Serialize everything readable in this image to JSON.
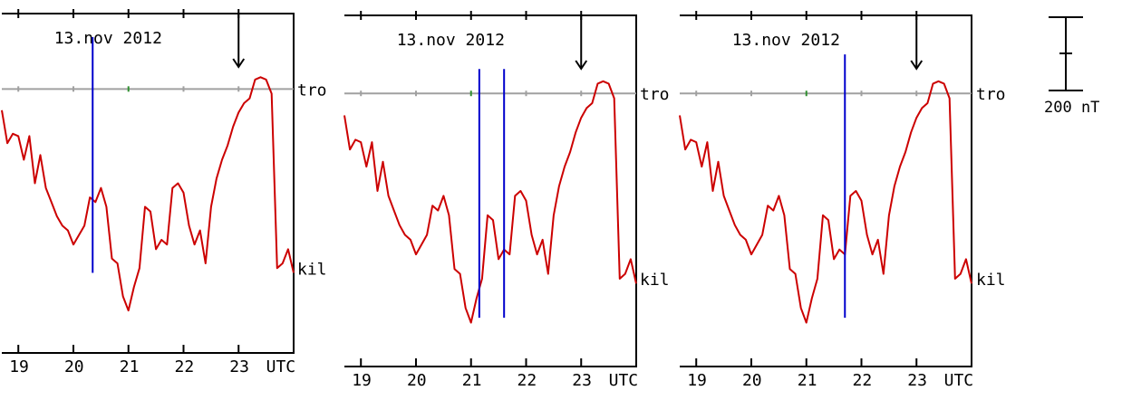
{
  "chart_data": {
    "type": "line",
    "colors": {
      "curve": "#cc0000",
      "marker": "#0000cc",
      "baseline": "#a0a0a0",
      "baseline_tick": "#2f8f2f",
      "frame": "#000000"
    },
    "panels": [
      {
        "date_label": "13.nov 2012",
        "station_top": "tro",
        "station_bottom": "kil",
        "x_ticks": [
          "19",
          "20",
          "21",
          "22",
          "23"
        ],
        "x_unit": "UTC",
        "xlim": [
          18.7,
          24.0
        ],
        "ylim": [
          -560,
          160
        ],
        "baseline_y": 0,
        "green_tick_x": 21.0,
        "date_arrow_x": 23.0,
        "markers": [
          {
            "x": 20.35,
            "y0": -390,
            "y1": 110
          }
        ],
        "x": [
          18.7,
          18.8,
          18.9,
          19.0,
          19.1,
          19.2,
          19.3,
          19.4,
          19.5,
          19.6,
          19.7,
          19.8,
          19.9,
          20.0,
          20.1,
          20.2,
          20.3,
          20.4,
          20.5,
          20.6,
          20.7,
          20.8,
          20.9,
          21.0,
          21.1,
          21.2,
          21.3,
          21.4,
          21.5,
          21.6,
          21.7,
          21.8,
          21.9,
          22.0,
          22.1,
          22.2,
          22.3,
          22.4,
          22.5,
          22.6,
          22.7,
          22.8,
          22.9,
          23.0,
          23.1,
          23.2,
          23.3,
          23.4,
          23.5,
          23.6,
          23.7,
          23.8,
          23.9,
          24.0
        ],
        "y": [
          -45,
          -115,
          -95,
          -100,
          -150,
          -100,
          -200,
          -140,
          -210,
          -240,
          -270,
          -290,
          -300,
          -330,
          -310,
          -290,
          -230,
          -240,
          -210,
          -250,
          -360,
          -370,
          -440,
          -470,
          -420,
          -380,
          -250,
          -260,
          -340,
          -320,
          -330,
          -210,
          -200,
          -220,
          -290,
          -330,
          -300,
          -370,
          -250,
          -190,
          -150,
          -120,
          -80,
          -50,
          -30,
          -20,
          20,
          25,
          20,
          -10,
          -380,
          -370,
          -340,
          -390
        ]
      },
      {
        "date_label": "13.nov 2012",
        "station_top": "tro",
        "station_bottom": "kil",
        "x_ticks": [
          "19",
          "20",
          "21",
          "22",
          "23"
        ],
        "x_unit": "UTC",
        "xlim": [
          18.7,
          24.0
        ],
        "ylim": [
          -560,
          160
        ],
        "baseline_y": 0,
        "green_tick_x": 21.0,
        "date_arrow_x": 23.0,
        "markers": [
          {
            "x": 21.15,
            "y0": -460,
            "y1": 50
          },
          {
            "x": 21.6,
            "y0": -460,
            "y1": 50
          }
        ],
        "x": [
          18.7,
          18.8,
          18.9,
          19.0,
          19.1,
          19.2,
          19.3,
          19.4,
          19.5,
          19.6,
          19.7,
          19.8,
          19.9,
          20.0,
          20.1,
          20.2,
          20.3,
          20.4,
          20.5,
          20.6,
          20.7,
          20.8,
          20.9,
          21.0,
          21.1,
          21.2,
          21.3,
          21.4,
          21.5,
          21.6,
          21.7,
          21.8,
          21.9,
          22.0,
          22.1,
          22.2,
          22.3,
          22.4,
          22.5,
          22.6,
          22.7,
          22.8,
          22.9,
          23.0,
          23.1,
          23.2,
          23.3,
          23.4,
          23.5,
          23.6,
          23.7,
          23.8,
          23.9,
          24.0
        ],
        "y": [
          -45,
          -115,
          -95,
          -100,
          -150,
          -100,
          -200,
          -140,
          -210,
          -240,
          -270,
          -290,
          -300,
          -330,
          -310,
          -290,
          -230,
          -240,
          -210,
          -250,
          -360,
          -370,
          -440,
          -470,
          -420,
          -380,
          -250,
          -260,
          -340,
          -320,
          -330,
          -210,
          -200,
          -220,
          -290,
          -330,
          -300,
          -370,
          -250,
          -190,
          -150,
          -120,
          -80,
          -50,
          -30,
          -20,
          20,
          25,
          20,
          -10,
          -380,
          -370,
          -340,
          -390
        ]
      },
      {
        "date_label": "13.nov 2012",
        "station_top": "tro",
        "station_bottom": "kil",
        "x_ticks": [
          "19",
          "20",
          "21",
          "22",
          "23"
        ],
        "x_unit": "UTC",
        "xlim": [
          18.7,
          24.0
        ],
        "ylim": [
          -560,
          160
        ],
        "baseline_y": 0,
        "green_tick_x": 21.0,
        "date_arrow_x": 23.0,
        "markers": [
          {
            "x": 21.7,
            "y0": -460,
            "y1": 80
          }
        ],
        "x": [
          18.7,
          18.8,
          18.9,
          19.0,
          19.1,
          19.2,
          19.3,
          19.4,
          19.5,
          19.6,
          19.7,
          19.8,
          19.9,
          20.0,
          20.1,
          20.2,
          20.3,
          20.4,
          20.5,
          20.6,
          20.7,
          20.8,
          20.9,
          21.0,
          21.1,
          21.2,
          21.3,
          21.4,
          21.5,
          21.6,
          21.7,
          21.8,
          21.9,
          22.0,
          22.1,
          22.2,
          22.3,
          22.4,
          22.5,
          22.6,
          22.7,
          22.8,
          22.9,
          23.0,
          23.1,
          23.2,
          23.3,
          23.4,
          23.5,
          23.6,
          23.7,
          23.8,
          23.9,
          24.0
        ],
        "y": [
          -45,
          -115,
          -95,
          -100,
          -150,
          -100,
          -200,
          -140,
          -210,
          -240,
          -270,
          -290,
          -300,
          -330,
          -310,
          -290,
          -230,
          -240,
          -210,
          -250,
          -360,
          -370,
          -440,
          -470,
          -420,
          -380,
          -250,
          -260,
          -340,
          -320,
          -330,
          -210,
          -200,
          -220,
          -290,
          -330,
          -300,
          -370,
          -250,
          -190,
          -150,
          -120,
          -80,
          -50,
          -30,
          -20,
          20,
          25,
          20,
          -10,
          -380,
          -370,
          -340,
          -390
        ]
      }
    ],
    "scale_bar": {
      "label": "200 nT",
      "value": 200
    }
  }
}
